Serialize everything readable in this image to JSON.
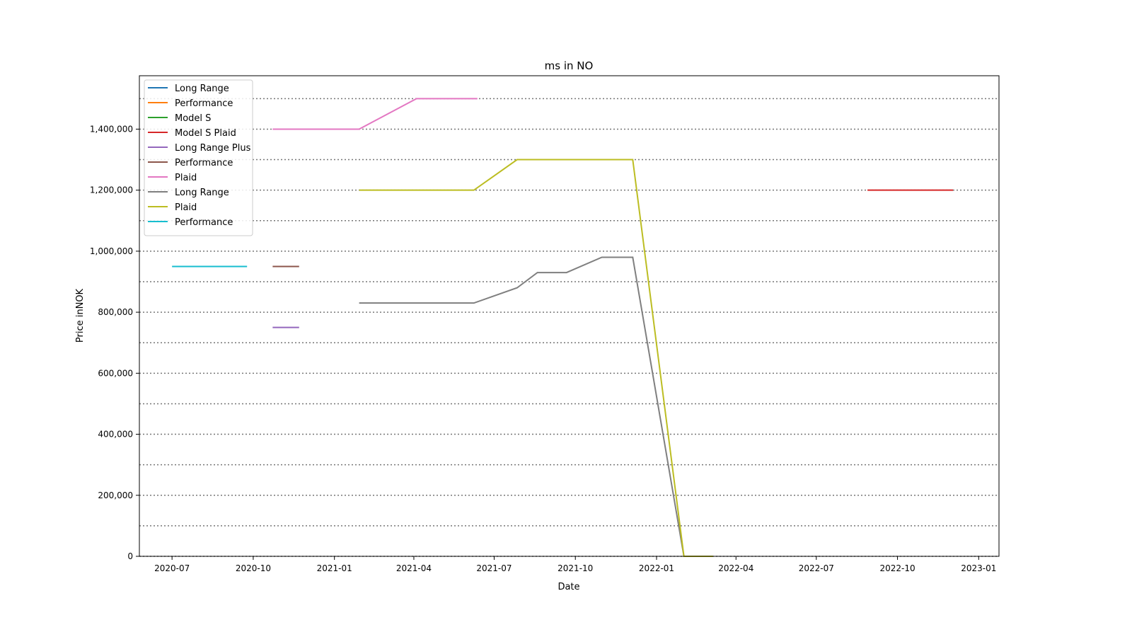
{
  "chart_data": {
    "type": "line",
    "title": "ms in NO",
    "xlabel": "Date",
    "ylabel": "Price inNOK",
    "xlim": [
      "2020-05-25",
      "2023-01-24"
    ],
    "ylim": [
      0,
      1575000
    ],
    "x_ticks": [
      "2020-07",
      "2020-10",
      "2021-01",
      "2021-04",
      "2021-07",
      "2021-10",
      "2022-01",
      "2022-04",
      "2022-07",
      "2022-10",
      "2023-01"
    ],
    "y_ticks": [
      0,
      200000,
      400000,
      600000,
      800000,
      1000000,
      1200000,
      1400000
    ],
    "y_tick_labels": [
      "0",
      "200,000",
      "400,000",
      "600,000",
      "800,000",
      "1,000,000",
      "1,200,000",
      "1,400,000"
    ],
    "y_grid": [
      0,
      100000,
      200000,
      300000,
      400000,
      500000,
      600000,
      700000,
      800000,
      900000,
      1000000,
      1100000,
      1200000,
      1300000,
      1400000,
      1500000
    ],
    "grid": "horizontal dotted",
    "legend_position": "top-left",
    "series": [
      {
        "name": "Long Range",
        "color": "#1f77b4",
        "points": []
      },
      {
        "name": "Performance",
        "color": "#ff7f0e",
        "points": []
      },
      {
        "name": "Model S",
        "color": "#2ca02c",
        "points": []
      },
      {
        "name": "Model S Plaid",
        "color": "#d62728",
        "points": [
          [
            "2022-08-28",
            1200000
          ],
          [
            "2022-12-03",
            1200000
          ]
        ]
      },
      {
        "name": "Long Range Plus",
        "color": "#9467bd",
        "points": [
          [
            "2020-10-23",
            750000
          ],
          [
            "2020-11-22",
            750000
          ]
        ]
      },
      {
        "name": "Performance",
        "color": "#8c564b",
        "points": [
          [
            "2020-10-23",
            950000
          ],
          [
            "2020-11-22",
            950000
          ]
        ]
      },
      {
        "name": "Plaid",
        "color": "#e377c2",
        "points": [
          [
            "2020-10-23",
            1400000
          ],
          [
            "2021-01-29",
            1400000
          ],
          [
            "2021-04-04",
            1500000
          ],
          [
            "2021-06-12",
            1500000
          ]
        ]
      },
      {
        "name": "Long Range",
        "color": "#7f7f7f",
        "points": [
          [
            "2021-01-29",
            830000
          ],
          [
            "2021-06-08",
            830000
          ],
          [
            "2021-07-27",
            880000
          ],
          [
            "2021-08-19",
            930000
          ],
          [
            "2021-09-21",
            930000
          ],
          [
            "2021-10-31",
            980000
          ],
          [
            "2021-12-05",
            980000
          ],
          [
            "2022-02-01",
            0
          ],
          [
            "2022-03-06",
            0
          ]
        ]
      },
      {
        "name": "Plaid",
        "color": "#bcbd22",
        "points": [
          [
            "2021-01-29",
            1200000
          ],
          [
            "2021-06-08",
            1200000
          ],
          [
            "2021-07-27",
            1300000
          ],
          [
            "2021-12-05",
            1300000
          ],
          [
            "2022-02-01",
            0
          ],
          [
            "2022-03-06",
            0
          ]
        ]
      },
      {
        "name": "Performance",
        "color": "#17becf",
        "points": [
          [
            "2020-07-01",
            950000
          ],
          [
            "2020-09-24",
            950000
          ]
        ]
      }
    ]
  }
}
